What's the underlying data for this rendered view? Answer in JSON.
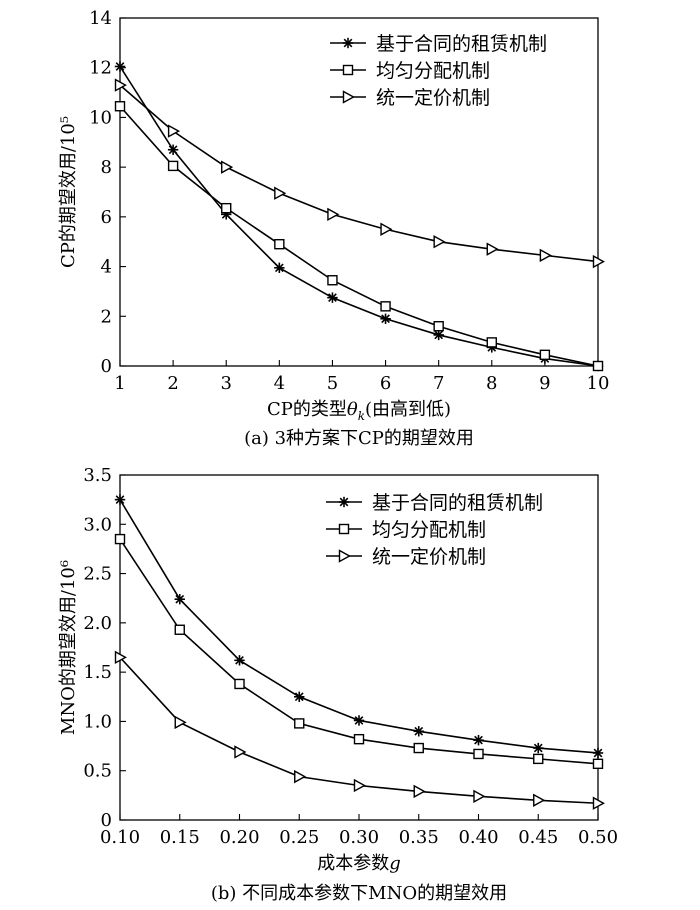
{
  "chart_data": [
    {
      "type": "line",
      "title": "",
      "caption": "(a) 3种方案下CP的期望效用",
      "xlabel": "CP的类型θ_k(由高到低)",
      "xlabel_main": "CP的类型",
      "xlabel_symbol": "θ",
      "xlabel_sub": "k",
      "xlabel_tail": "(由高到低)",
      "ylabel": "CP的期望效用/10⁵",
      "xlim": [
        1,
        10
      ],
      "ylim": [
        0,
        14
      ],
      "x": [
        1,
        2,
        3,
        4,
        5,
        6,
        7,
        8,
        9,
        10
      ],
      "xticks": [
        "1",
        "2",
        "3",
        "4",
        "5",
        "6",
        "7",
        "8",
        "9",
        "10"
      ],
      "yticks": [
        0,
        2,
        4,
        6,
        8,
        10,
        12,
        14
      ],
      "ytick_labels": [
        "0",
        "2",
        "4",
        "6",
        "8",
        "10",
        "12",
        "14"
      ],
      "grid": false,
      "legend_position": "top-right",
      "series": [
        {
          "name": "基于合同的租赁机制",
          "marker": "asterisk",
          "values": [
            12.05,
            8.7,
            6.1,
            3.95,
            2.75,
            1.9,
            1.25,
            0.75,
            0.3,
            0.0
          ]
        },
        {
          "name": "均匀分配机制",
          "marker": "square",
          "values": [
            10.45,
            8.05,
            6.35,
            4.9,
            3.45,
            2.4,
            1.6,
            0.95,
            0.45,
            0.0
          ]
        },
        {
          "name": "统一定价机制",
          "marker": "triangle-right",
          "values": [
            11.3,
            9.45,
            8.0,
            6.95,
            6.1,
            5.5,
            5.0,
            4.7,
            4.45,
            4.2
          ]
        }
      ]
    },
    {
      "type": "line",
      "title": "",
      "caption": "(b) 不同成本参数下MNO的期望效用",
      "xlabel": "成本参数g",
      "xlabel_main": "成本参数",
      "xlabel_symbol": "g",
      "xlabel_sub": "",
      "xlabel_tail": "",
      "ylabel": "MNO的期望效用/10⁶",
      "xlim": [
        0.1,
        0.5
      ],
      "ylim": [
        0,
        3.5
      ],
      "x": [
        0.1,
        0.15,
        0.2,
        0.25,
        0.3,
        0.35,
        0.4,
        0.45,
        0.5
      ],
      "xticks": [
        "0.10",
        "0.15",
        "0.20",
        "0.25",
        "0.30",
        "0.35",
        "0.40",
        "0.45",
        "0.50"
      ],
      "yticks": [
        0,
        0.5,
        1.0,
        1.5,
        2.0,
        2.5,
        3.0,
        3.5
      ],
      "ytick_labels": [
        "0",
        "0.5",
        "1.0",
        "1.5",
        "2.0",
        "2.5",
        "3.0",
        "3.5"
      ],
      "grid": false,
      "legend_position": "top-right",
      "series": [
        {
          "name": "基于合同的租赁机制",
          "marker": "asterisk",
          "values": [
            3.25,
            2.24,
            1.62,
            1.25,
            1.01,
            0.9,
            0.81,
            0.73,
            0.68
          ]
        },
        {
          "name": "均匀分配机制",
          "marker": "square",
          "values": [
            2.85,
            1.93,
            1.38,
            0.98,
            0.82,
            0.73,
            0.67,
            0.62,
            0.57
          ]
        },
        {
          "name": "统一定价机制",
          "marker": "triangle-right",
          "values": [
            1.65,
            0.99,
            0.69,
            0.44,
            0.35,
            0.29,
            0.24,
            0.2,
            0.17
          ]
        }
      ]
    }
  ]
}
